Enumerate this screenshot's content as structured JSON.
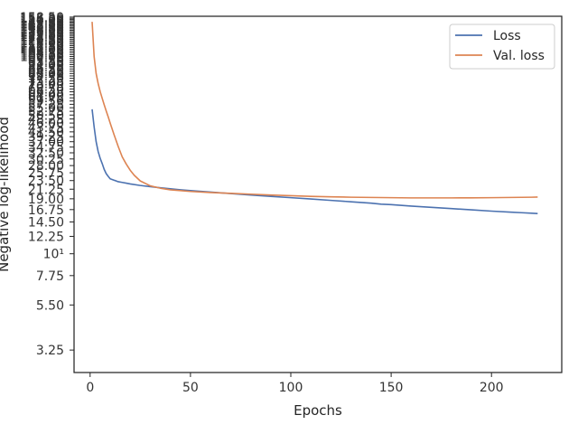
{
  "chart_data": {
    "type": "line",
    "title": "",
    "xlabel": "Epochs",
    "ylabel": "Negative log-likelihood",
    "x_ticks": [
      "0",
      "50",
      "100",
      "150",
      "200"
    ],
    "x_tick_values": [
      0,
      50,
      100,
      150,
      200
    ],
    "y_scale": "log",
    "y_ticks": [
      {
        "value": 3.25,
        "label": "3.25"
      },
      {
        "value": 5.5,
        "label": "5.50"
      },
      {
        "value": 7.75,
        "label": "7.75"
      },
      {
        "value": 10,
        "label": "10¹"
      },
      {
        "value": 12.25,
        "label": "12.25"
      },
      {
        "value": 14.5,
        "label": "14.50"
      },
      {
        "value": 16.75,
        "label": "16.75"
      },
      {
        "value": 19.0,
        "label": "19.00"
      },
      {
        "value": 21.25,
        "label": "21.25"
      },
      {
        "value": 23.5,
        "label": "23.50"
      },
      {
        "value": 25.75,
        "label": "25.75"
      },
      {
        "value": 28.0,
        "label": "28.00"
      },
      {
        "value": 30.25,
        "label": "30.25"
      },
      {
        "value": 32.5,
        "label": "32.50"
      },
      {
        "value": 34.75,
        "label": "34.75"
      },
      {
        "value": 37.0,
        "label": "37.00"
      },
      {
        "value": 39.25,
        "label": "39.25"
      },
      {
        "value": 41.5,
        "label": "41.50"
      },
      {
        "value": 43.75,
        "label": "43.75"
      },
      {
        "value": 46.0,
        "label": "46.00"
      },
      {
        "value": 48.25,
        "label": "48.25"
      },
      {
        "value": 50.5,
        "label": "50.50"
      },
      {
        "value": 52.75,
        "label": "52.75"
      },
      {
        "value": 55.0,
        "label": "55.00"
      },
      {
        "value": 57.25,
        "label": "57.25"
      },
      {
        "value": 59.5,
        "label": "59.50"
      },
      {
        "value": 61.75,
        "label": "61.75"
      },
      {
        "value": 64.0,
        "label": "64.00"
      },
      {
        "value": 66.25,
        "label": "66.25"
      },
      {
        "value": 68.5,
        "label": "68.50"
      },
      {
        "value": 70.75,
        "label": "70.75"
      },
      {
        "value": 73.0,
        "label": "73.00"
      },
      {
        "value": 75.25,
        "label": "75.25"
      },
      {
        "value": 77.5,
        "label": "77.50"
      },
      {
        "value": 79.75,
        "label": "79.75"
      },
      {
        "value": 82.0,
        "label": "82.00"
      },
      {
        "value": 84.25,
        "label": "84.25"
      },
      {
        "value": 86.5,
        "label": "86.50"
      },
      {
        "value": 88.75,
        "label": "88.75"
      },
      {
        "value": 91.0,
        "label": "91.00"
      },
      {
        "value": 93.25,
        "label": "93.25"
      },
      {
        "value": 95.5,
        "label": "95.50"
      },
      {
        "value": 97.75,
        "label": "97.75"
      },
      {
        "value": 100.0,
        "label": "100.00"
      },
      {
        "value": 102.25,
        "label": "102.25"
      },
      {
        "value": 104.5,
        "label": "104.50"
      },
      {
        "value": 106.75,
        "label": "106.75"
      },
      {
        "value": 109.0,
        "label": "109.00"
      },
      {
        "value": 111.25,
        "label": "111.25"
      },
      {
        "value": 113.5,
        "label": "113.50"
      },
      {
        "value": 115.75,
        "label": "115.75"
      },
      {
        "value": 118.0,
        "label": "118.00"
      },
      {
        "value": 120.25,
        "label": "120.25"
      },
      {
        "value": 122.5,
        "label": "122.50"
      },
      {
        "value": 124.75,
        "label": "124.75"
      },
      {
        "value": 127.0,
        "label": "127.00"
      },
      {
        "value": 129.25,
        "label": "129.25"
      },
      {
        "value": 131.5,
        "label": "131.50"
      },
      {
        "value": 133.75,
        "label": "133.75"
      },
      {
        "value": 136.0,
        "label": "136.00"
      },
      {
        "value": 138.25,
        "label": "138.25"
      },
      {
        "value": 140.5,
        "label": "140.50"
      },
      {
        "value": 142.75,
        "label": "142.75"
      },
      {
        "value": 145.0,
        "label": "145.00"
      },
      {
        "value": 147.25,
        "label": "147.25"
      },
      {
        "value": 149.5,
        "label": "149.50"
      },
      {
        "value": 151.75,
        "label": "151.75"
      },
      {
        "value": 154.0,
        "label": "154.00"
      },
      {
        "value": 156.25,
        "label": "156.25"
      },
      {
        "value": 158.5,
        "label": "158.50"
      }
    ],
    "xlim": [
      -8,
      235
    ],
    "ylim": [
      2.5,
      160
    ],
    "grid": false,
    "legend_position": "top-right",
    "series": [
      {
        "name": "Loss",
        "color": "#4c72b0",
        "x": [
          1,
          2,
          3,
          4,
          5,
          6,
          7,
          8,
          9,
          10,
          12,
          14,
          16,
          18,
          20,
          25,
          30,
          35,
          40,
          45,
          50,
          60,
          70,
          80,
          90,
          100,
          110,
          120,
          130,
          140,
          145,
          150,
          160,
          170,
          180,
          190,
          200,
          210,
          215,
          220,
          223
        ],
        "y": [
          54.0,
          44.0,
          37.0,
          33.0,
          30.5,
          28.7,
          26.8,
          25.5,
          24.7,
          24.0,
          23.6,
          23.2,
          23.0,
          22.8,
          22.6,
          22.2,
          21.9,
          21.6,
          21.35,
          21.1,
          20.9,
          20.55,
          20.2,
          19.85,
          19.55,
          19.25,
          18.95,
          18.65,
          18.35,
          18.05,
          17.85,
          17.75,
          17.45,
          17.2,
          16.95,
          16.7,
          16.45,
          16.25,
          16.15,
          16.05,
          16.0
        ]
      },
      {
        "name": "Val. loss",
        "color": "#dd8452",
        "x": [
          1,
          2,
          3,
          4,
          5,
          6,
          7,
          8,
          9,
          10,
          12,
          14,
          16,
          18,
          20,
          22,
          25,
          30,
          35,
          40,
          45,
          50,
          60,
          70,
          80,
          90,
          100,
          110,
          120,
          130,
          140,
          150,
          160,
          170,
          180,
          190,
          200,
          210,
          220,
          223
        ],
        "y": [
          150.0,
          100.0,
          82.0,
          73.0,
          66.5,
          61.5,
          57.0,
          53.0,
          49.5,
          46.0,
          40.0,
          35.0,
          31.0,
          28.5,
          26.5,
          25.0,
          23.4,
          22.1,
          21.5,
          21.1,
          20.9,
          20.7,
          20.45,
          20.25,
          20.05,
          19.85,
          19.7,
          19.55,
          19.45,
          19.35,
          19.3,
          19.25,
          19.2,
          19.2,
          19.2,
          19.22,
          19.25,
          19.3,
          19.35,
          19.38
        ]
      }
    ]
  }
}
